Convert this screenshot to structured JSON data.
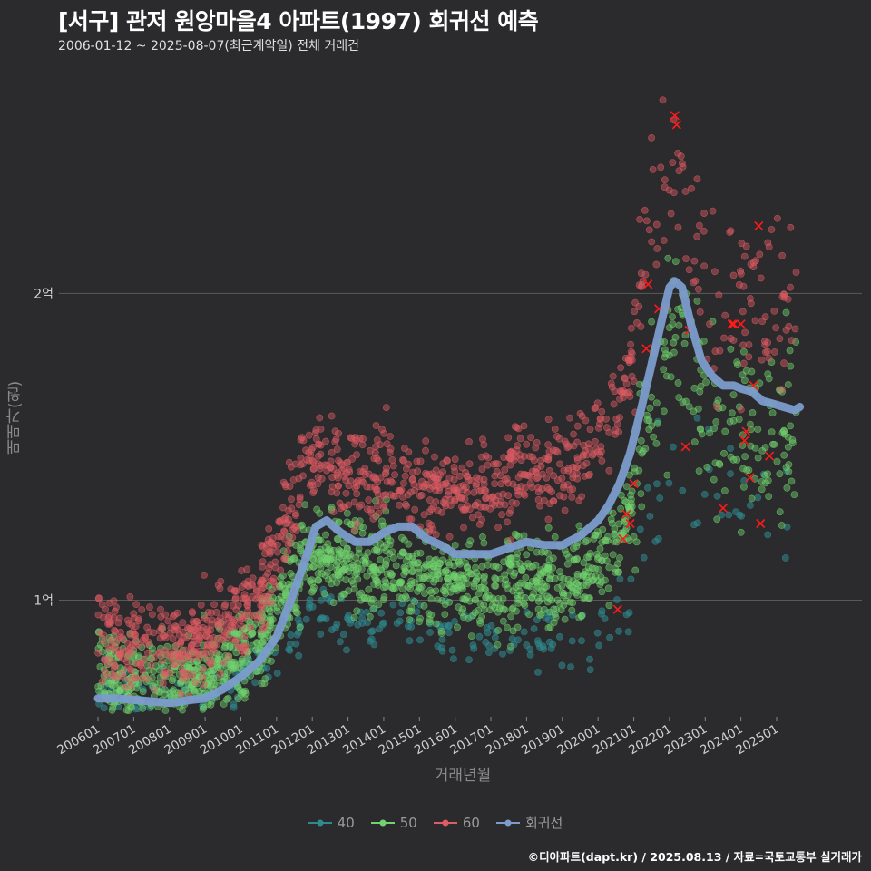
{
  "header": {
    "title": "[서구] 관저 원앙마을4 아파트(1997) 회귀선 예측",
    "subtitle": "2006-01-12 ~ 2025-08-07(최근계약일) 전체 거래건"
  },
  "footer": "©디아파트(dapt.kr) / 2025.08.13 / 자료=국토교통부 실거래가",
  "colors": {
    "s40": "#2f8a8f",
    "s50": "#72d36e",
    "s60": "#de5c63",
    "regression": "#7b9ccc",
    "cancelled": "#ff1a1a",
    "grid": "#5a5a5a",
    "background": "#2b2b2d"
  },
  "chart_data": {
    "type": "scatter",
    "xlabel": "거래년월",
    "ylabel": "매매가(원)",
    "x_ticks": [
      "200601",
      "200701",
      "200801",
      "200901",
      "201001",
      "201101",
      "201201",
      "201301",
      "201401",
      "201501",
      "201601",
      "201701",
      "201801",
      "201901",
      "202001",
      "202101",
      "202201",
      "202301",
      "202401",
      "202501"
    ],
    "y_ticks": [
      {
        "value": 100000000,
        "label": "1억"
      },
      {
        "value": 200000000,
        "label": "2억"
      }
    ],
    "xlim": [
      "2005-12",
      "2025-12"
    ],
    "ylim": [
      62000000,
      272000000
    ],
    "legend_position": "bottom",
    "series": [
      {
        "name": "40",
        "color_key": "s40",
        "trend": [
          [
            2006.0,
            0.7
          ],
          [
            2007.0,
            0.67
          ],
          [
            2008.0,
            0.67
          ],
          [
            2009.0,
            0.69
          ],
          [
            2010.0,
            0.75
          ],
          [
            2011.0,
            0.82
          ],
          [
            2012.0,
            0.95
          ],
          [
            2013.0,
            0.93
          ],
          [
            2014.0,
            0.92
          ],
          [
            2015.0,
            0.91
          ],
          [
            2016.0,
            0.89
          ],
          [
            2017.0,
            0.88
          ],
          [
            2018.0,
            0.88
          ],
          [
            2019.0,
            0.87
          ],
          [
            2020.0,
            0.89
          ],
          [
            2020.8,
            0.99
          ],
          [
            2021.5,
            1.3
          ],
          [
            2022.3,
            1.48
          ],
          [
            2023.0,
            1.4
          ],
          [
            2024.0,
            1.3
          ],
          [
            2025.6,
            1.25
          ]
        ]
      },
      {
        "name": "50",
        "color_key": "s50",
        "trend": [
          [
            2006.0,
            0.75
          ],
          [
            2007.0,
            0.72
          ],
          [
            2008.0,
            0.72
          ],
          [
            2009.0,
            0.74
          ],
          [
            2010.0,
            0.82
          ],
          [
            2011.0,
            0.95
          ],
          [
            2012.0,
            1.18
          ],
          [
            2013.0,
            1.12
          ],
          [
            2014.0,
            1.12
          ],
          [
            2015.0,
            1.08
          ],
          [
            2016.0,
            1.04
          ],
          [
            2017.0,
            1.05
          ],
          [
            2018.0,
            1.06
          ],
          [
            2019.0,
            1.05
          ],
          [
            2020.0,
            1.1
          ],
          [
            2020.8,
            1.25
          ],
          [
            2021.5,
            1.7
          ],
          [
            2022.3,
            1.95
          ],
          [
            2023.0,
            1.65
          ],
          [
            2024.0,
            1.55
          ],
          [
            2025.6,
            1.52
          ]
        ]
      },
      {
        "name": "60",
        "color_key": "s60",
        "trend": [
          [
            2006.0,
            0.86
          ],
          [
            2007.0,
            0.84
          ],
          [
            2008.0,
            0.85
          ],
          [
            2009.0,
            0.87
          ],
          [
            2010.0,
            0.96
          ],
          [
            2011.0,
            1.15
          ],
          [
            2012.0,
            1.5
          ],
          [
            2013.0,
            1.4
          ],
          [
            2014.0,
            1.42
          ],
          [
            2015.0,
            1.38
          ],
          [
            2016.0,
            1.32
          ],
          [
            2017.0,
            1.38
          ],
          [
            2018.0,
            1.42
          ],
          [
            2019.0,
            1.4
          ],
          [
            2020.0,
            1.52
          ],
          [
            2020.8,
            1.72
          ],
          [
            2021.5,
            2.3
          ],
          [
            2022.3,
            2.45
          ],
          [
            2023.0,
            2.0
          ],
          [
            2024.0,
            1.95
          ],
          [
            2025.6,
            1.98
          ]
        ]
      }
    ],
    "regression": {
      "name": "회귀선",
      "color_key": "regression",
      "points": [
        [
          2006.0,
          0.68
        ],
        [
          2006.5,
          0.68
        ],
        [
          2007.0,
          0.675
        ],
        [
          2007.5,
          0.67
        ],
        [
          2008.0,
          0.665
        ],
        [
          2008.6,
          0.675
        ],
        [
          2009.0,
          0.68
        ],
        [
          2009.5,
          0.71
        ],
        [
          2010.0,
          0.75
        ],
        [
          2010.5,
          0.8
        ],
        [
          2011.0,
          0.88
        ],
        [
          2011.4,
          1.0
        ],
        [
          2011.8,
          1.13
        ],
        [
          2012.1,
          1.24
        ],
        [
          2012.4,
          1.26
        ],
        [
          2012.8,
          1.22
        ],
        [
          2013.2,
          1.19
        ],
        [
          2013.6,
          1.19
        ],
        [
          2014.0,
          1.22
        ],
        [
          2014.4,
          1.24
        ],
        [
          2014.8,
          1.24
        ],
        [
          2015.2,
          1.2
        ],
        [
          2015.6,
          1.18
        ],
        [
          2016.0,
          1.15
        ],
        [
          2016.5,
          1.15
        ],
        [
          2017.0,
          1.15
        ],
        [
          2017.5,
          1.17
        ],
        [
          2018.0,
          1.19
        ],
        [
          2018.5,
          1.18
        ],
        [
          2019.0,
          1.18
        ],
        [
          2019.5,
          1.21
        ],
        [
          2020.0,
          1.26
        ],
        [
          2020.3,
          1.31
        ],
        [
          2020.6,
          1.38
        ],
        [
          2020.9,
          1.48
        ],
        [
          2021.2,
          1.62
        ],
        [
          2021.5,
          1.77
        ],
        [
          2021.8,
          1.92
        ],
        [
          2022.0,
          2.02
        ],
        [
          2022.15,
          2.04
        ],
        [
          2022.35,
          2.02
        ],
        [
          2022.6,
          1.9
        ],
        [
          2022.9,
          1.78
        ],
        [
          2023.2,
          1.73
        ],
        [
          2023.5,
          1.7
        ],
        [
          2023.8,
          1.7
        ],
        [
          2024.0,
          1.69
        ],
        [
          2024.3,
          1.68
        ],
        [
          2024.6,
          1.65
        ],
        [
          2024.9,
          1.64
        ],
        [
          2025.2,
          1.63
        ],
        [
          2025.5,
          1.62
        ],
        [
          2025.65,
          1.63
        ]
      ]
    },
    "cancelled_markers": [
      [
        2020.55,
        0.97
      ],
      [
        2020.7,
        1.2
      ],
      [
        2020.8,
        1.28
      ],
      [
        2020.9,
        1.25
      ],
      [
        2021.0,
        1.38
      ],
      [
        2021.35,
        1.82
      ],
      [
        2021.4,
        2.03
      ],
      [
        2021.7,
        1.95
      ],
      [
        2022.15,
        2.58
      ],
      [
        2022.2,
        2.55
      ],
      [
        2022.45,
        1.5
      ],
      [
        2022.55,
        1.88
      ],
      [
        2023.5,
        1.3
      ],
      [
        2023.75,
        1.9
      ],
      [
        2023.8,
        1.9
      ],
      [
        2024.0,
        1.9
      ],
      [
        2024.1,
        1.52
      ],
      [
        2024.15,
        1.55
      ],
      [
        2024.25,
        1.4
      ],
      [
        2024.35,
        1.7
      ],
      [
        2024.5,
        2.22
      ],
      [
        2024.55,
        1.25
      ],
      [
        2024.8,
        1.47
      ]
    ],
    "annotations": []
  }
}
